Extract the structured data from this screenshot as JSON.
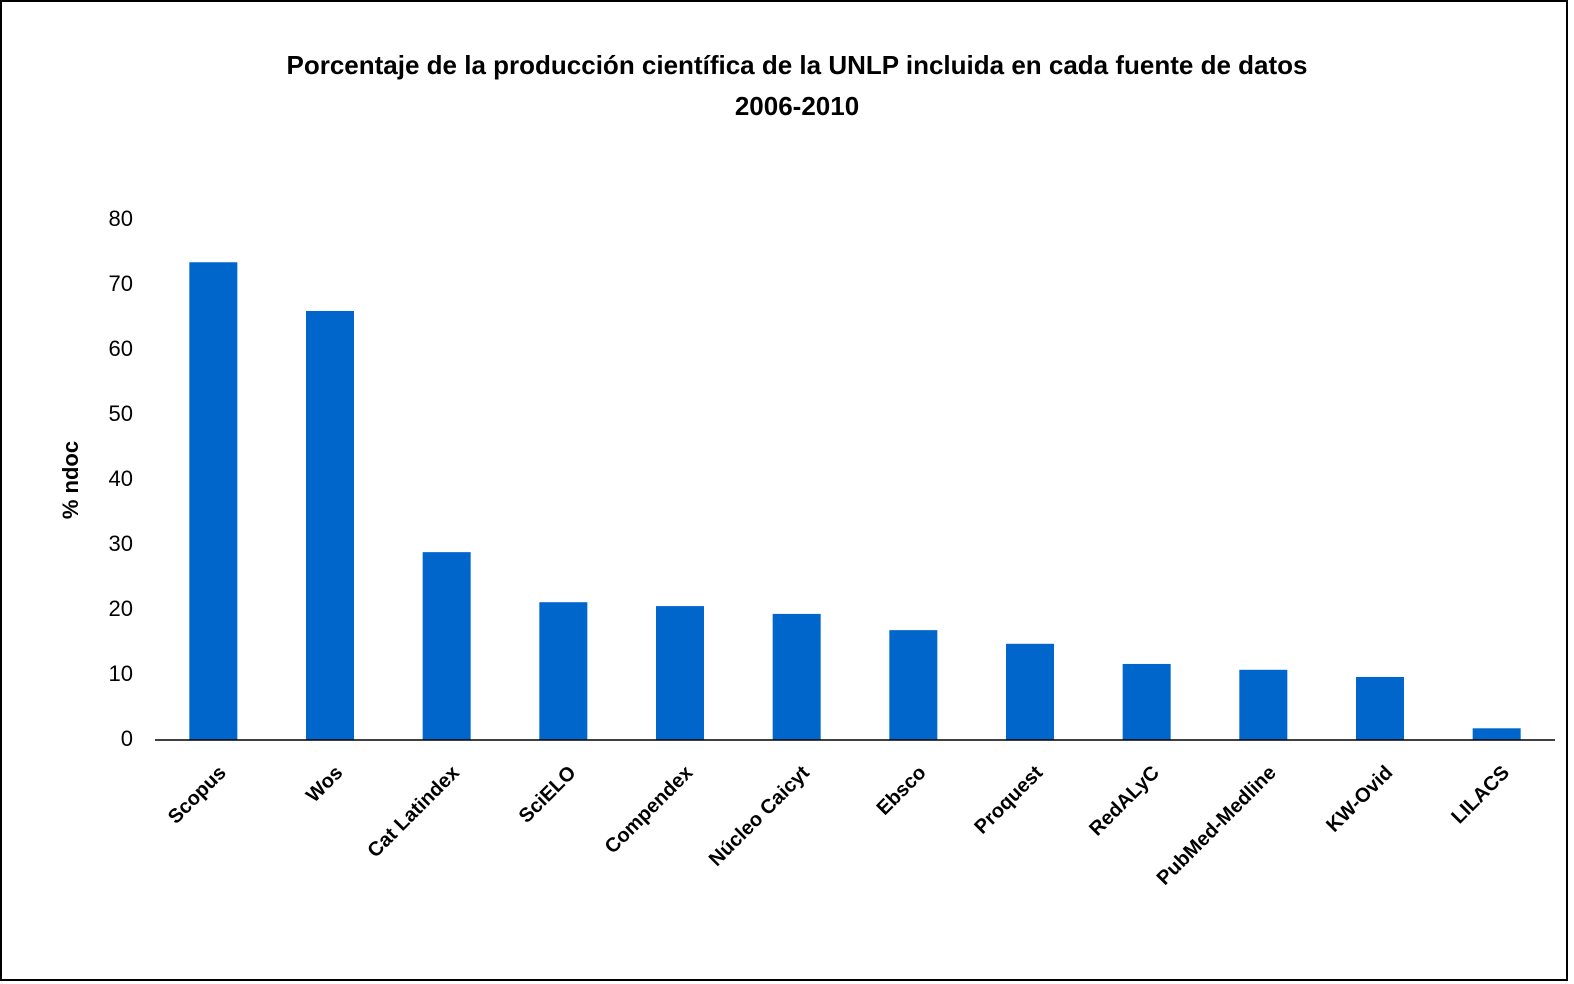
{
  "chart_data": {
    "type": "bar",
    "title": "Porcentaje de la producción científica de la UNLP incluida en cada fuente de datos",
    "subtitle": "2006-2010",
    "y_label": "% ndoc",
    "categories": [
      "Scopus",
      "Wos",
      "Cat Latindex",
      "SciELO",
      "Compendex",
      "Núcleo Caicyt",
      "Ebsco",
      "Proquest",
      "RedALyC",
      "PubMed-Medline",
      "KW-Ovid",
      "LILACS"
    ],
    "values": [
      73.5,
      66,
      28.9,
      21.2,
      20.6,
      19.4,
      16.9,
      14.8,
      11.7,
      10.8,
      9.7,
      1.8
    ],
    "color": "#0066cc",
    "ylim": [
      0,
      80
    ],
    "yticks": [
      0,
      10,
      20,
      30,
      40,
      50,
      60,
      70,
      80
    ],
    "grid": false
  }
}
